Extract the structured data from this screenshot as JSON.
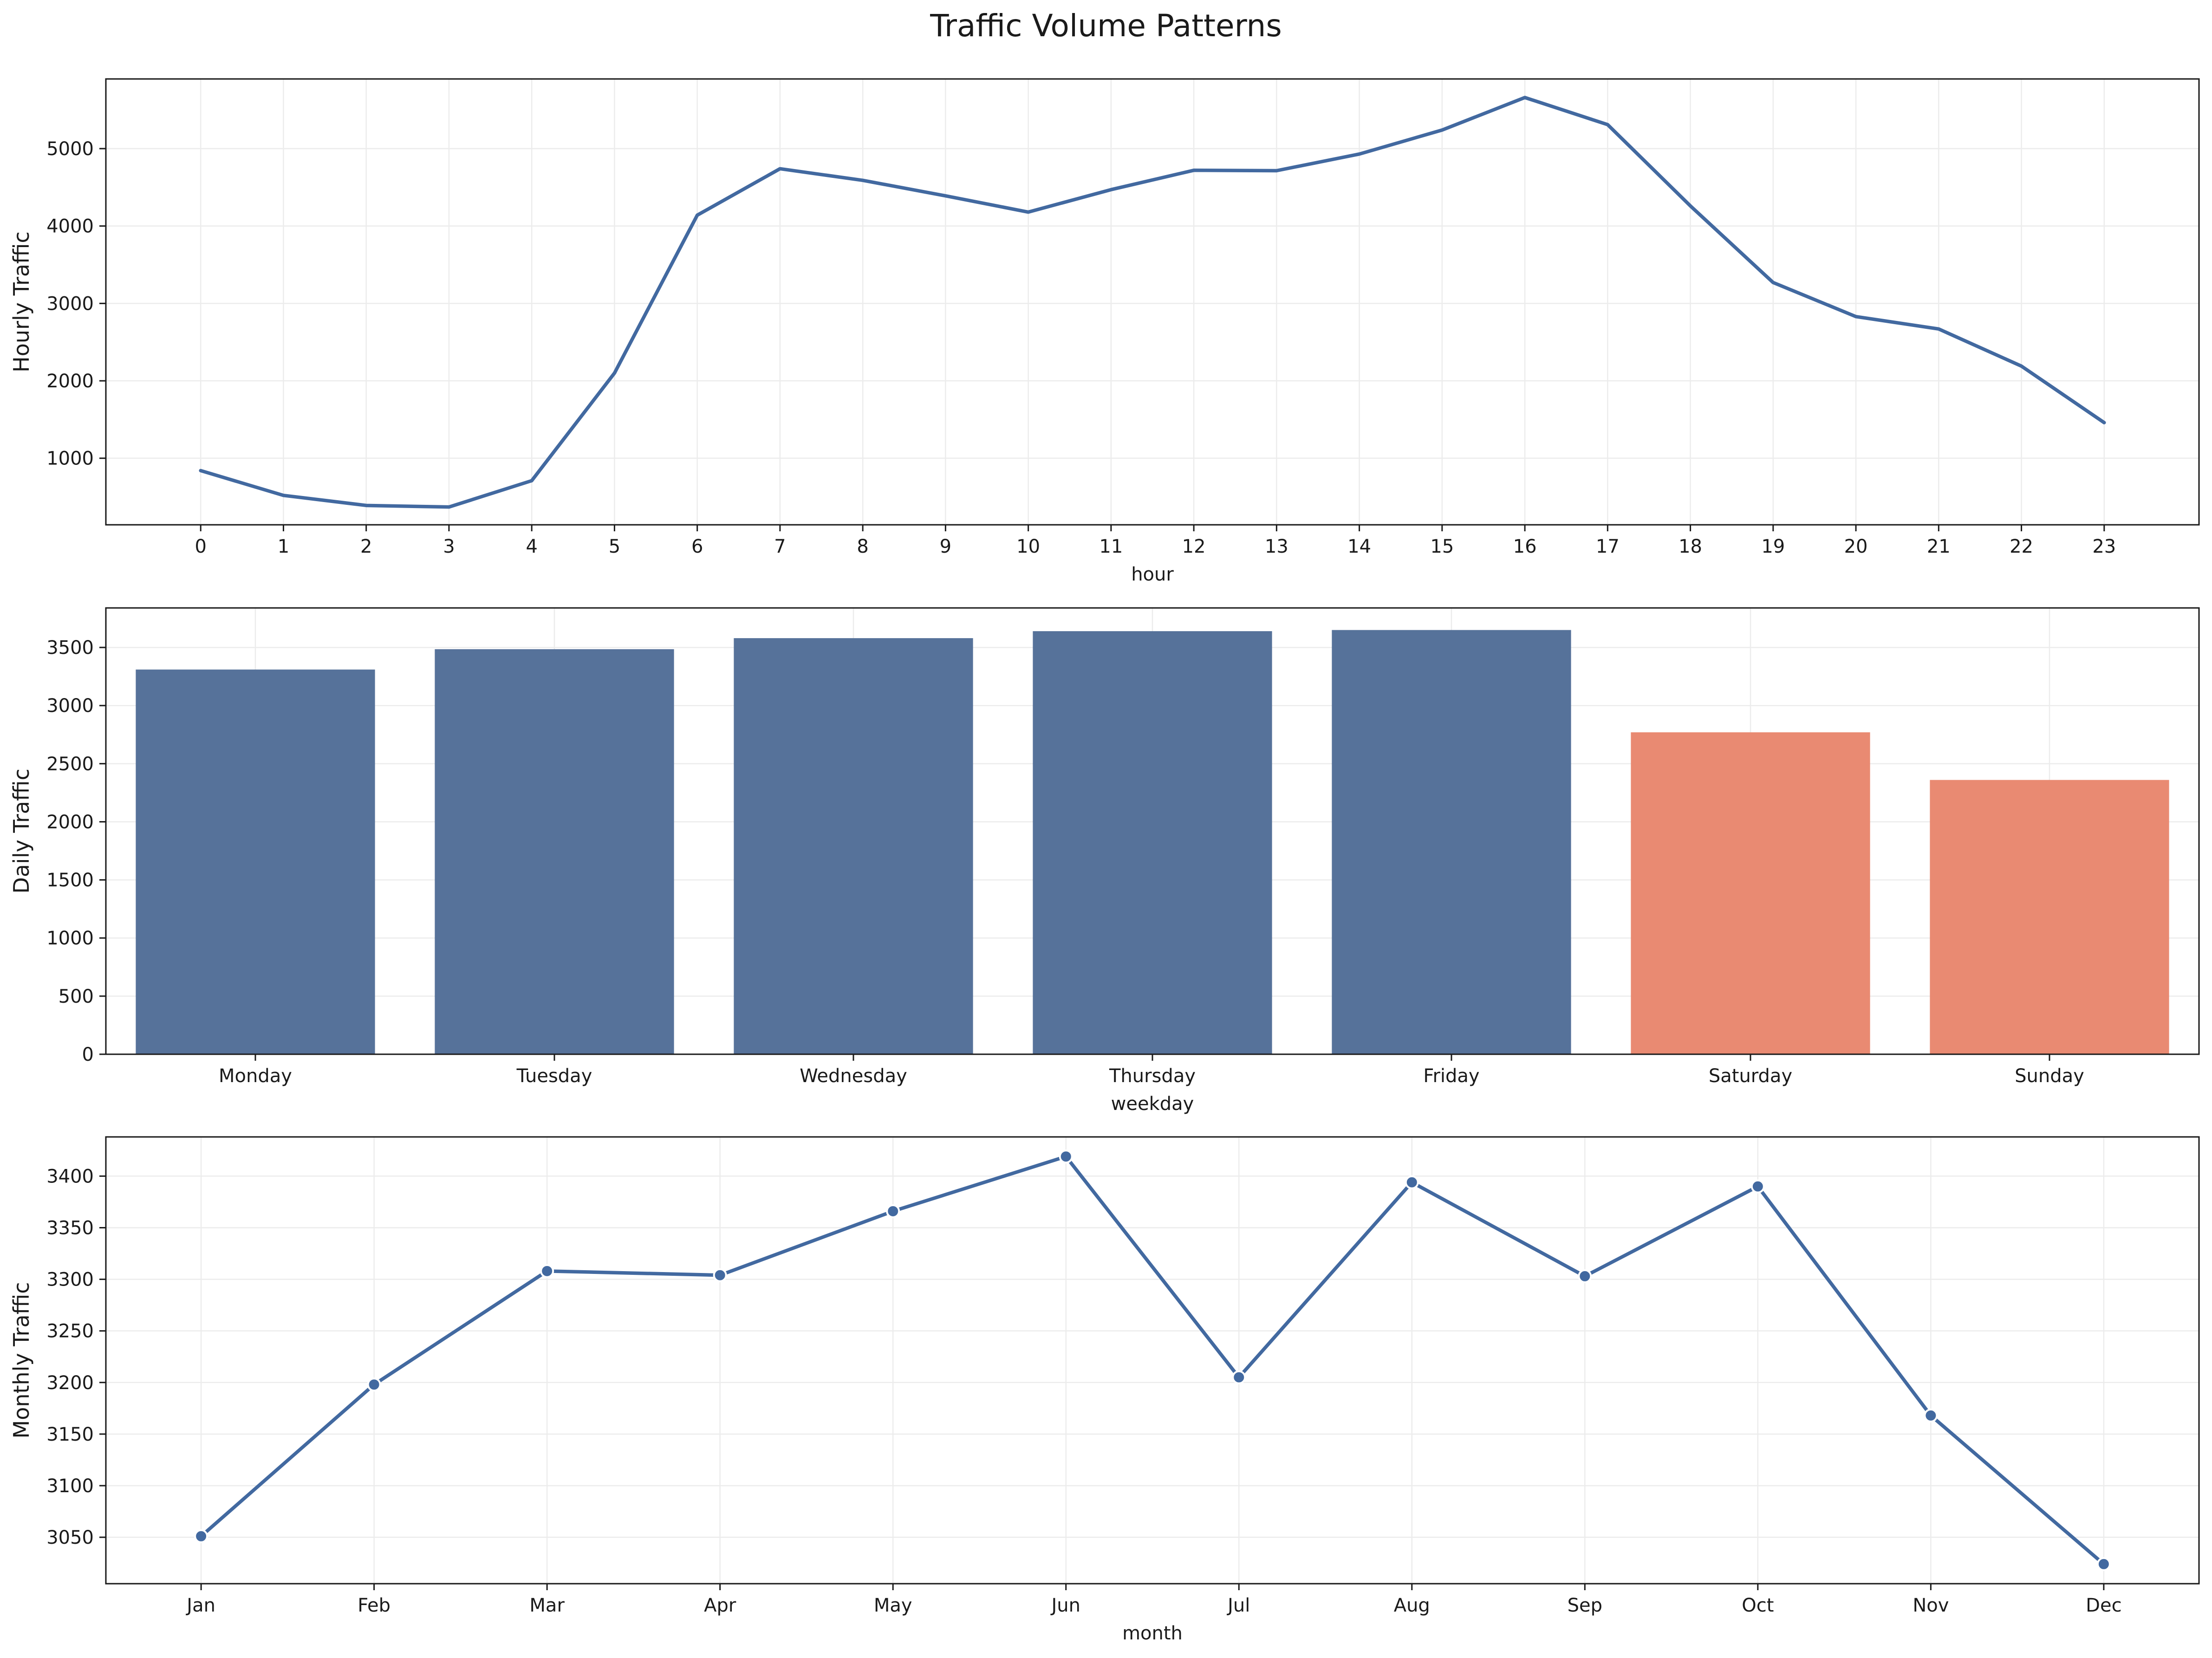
{
  "figure": {
    "title": "Traffic Volume Patterns",
    "colors": {
      "line": "#4269a0",
      "weekday_bar": "#56729a",
      "weekend_bar": "#e98a72",
      "grid": "#ececec",
      "axis": "#1a1a1a"
    }
  },
  "chart_data": [
    {
      "type": "line",
      "title": "",
      "xlabel": "hour",
      "ylabel": "Hourly Traffic",
      "grid": true,
      "markers": false,
      "x": [
        "0",
        "1",
        "2",
        "3",
        "4",
        "5",
        "6",
        "7",
        "8",
        "9",
        "10",
        "11",
        "12",
        "13",
        "14",
        "15",
        "16",
        "17",
        "18",
        "19",
        "20",
        "21",
        "22",
        "23"
      ],
      "values": [
        840,
        520,
        390,
        370,
        710,
        2100,
        4140,
        4740,
        4590,
        4390,
        4180,
        4470,
        4720,
        4715,
        4930,
        5240,
        5660,
        5310,
        4260,
        3270,
        2830,
        2670,
        2190,
        1460
      ],
      "ylim": [
        140,
        5900
      ],
      "yticks": [
        1000,
        2000,
        3000,
        4000,
        5000
      ]
    },
    {
      "type": "bar",
      "title": "",
      "xlabel": "weekday",
      "ylabel": "Daily Traffic",
      "grid": true,
      "categories": [
        "Monday",
        "Tuesday",
        "Wednesday",
        "Thursday",
        "Friday",
        "Saturday",
        "Sunday"
      ],
      "values": [
        3310,
        3485,
        3580,
        3640,
        3650,
        2770,
        2360
      ],
      "weekend": [
        false,
        false,
        false,
        false,
        false,
        true,
        true
      ],
      "ylim": [
        0,
        3840
      ],
      "yticks": [
        0,
        500,
        1000,
        1500,
        2000,
        2500,
        3000,
        3500
      ]
    },
    {
      "type": "line",
      "title": "",
      "xlabel": "month",
      "ylabel": "Monthly Traffic",
      "grid": true,
      "markers": true,
      "x": [
        "Jan",
        "Feb",
        "Mar",
        "Apr",
        "May",
        "Jun",
        "Jul",
        "Aug",
        "Sep",
        "Oct",
        "Nov",
        "Dec"
      ],
      "values": [
        3051,
        3198,
        3308,
        3304,
        3366,
        3419,
        3205,
        3394,
        3303,
        3390,
        3168,
        3024
      ],
      "ylim": [
        3005,
        3438
      ],
      "yticks": [
        3050,
        3100,
        3150,
        3200,
        3250,
        3300,
        3350,
        3400
      ]
    }
  ]
}
